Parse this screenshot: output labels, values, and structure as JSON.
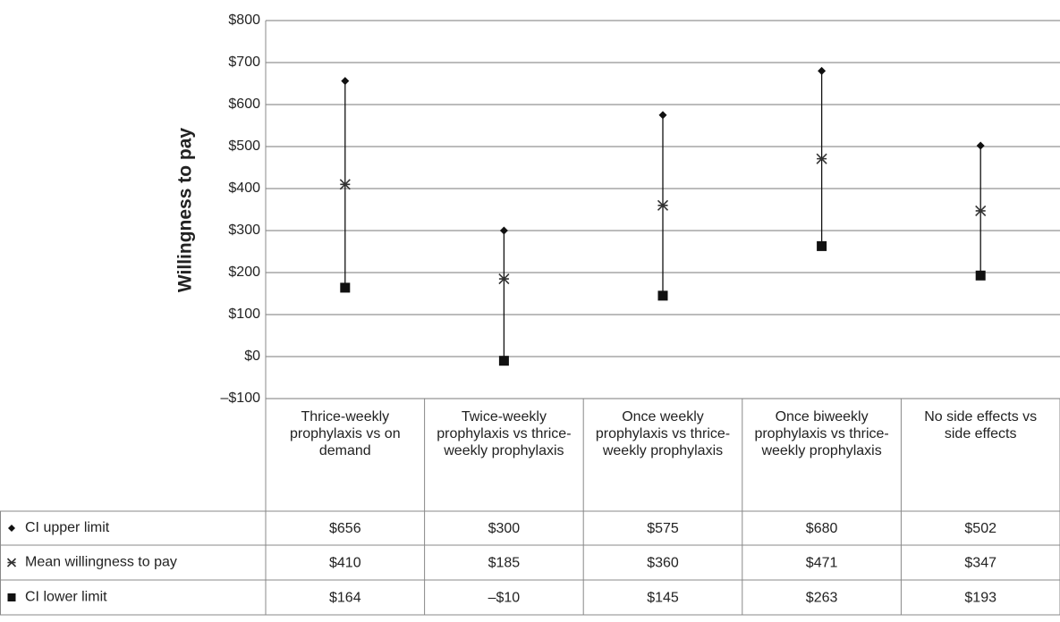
{
  "chart_data": {
    "type": "errorbar",
    "y_label": "Willingness to pay",
    "categories": [
      "Thrice-weekly prophylaxis vs on demand",
      "Twice-weekly prophylaxis vs thrice-weekly prophylaxis",
      "Once weekly prophylaxis vs thrice-weekly prophylaxis",
      "Once biweekly prophylaxis vs thrice-weekly prophylaxis",
      "No side effects vs side effects"
    ],
    "series": [
      {
        "name": "CI upper limit",
        "marker": "diamond",
        "color": "#111111",
        "values": [
          656,
          300,
          575,
          680,
          502
        ],
        "value_labels": [
          "$656",
          "$300",
          "$575",
          "$680",
          "$502"
        ]
      },
      {
        "name": "Mean willingness to pay",
        "marker": "star",
        "color": "#333333",
        "values": [
          410,
          185,
          360,
          471,
          347
        ],
        "value_labels": [
          "$410",
          "$185",
          "$360",
          "$471",
          "$347"
        ]
      },
      {
        "name": "CI lower limit",
        "marker": "square",
        "color": "#111111",
        "values": [
          164,
          -10,
          145,
          263,
          193
        ],
        "value_labels": [
          "$164",
          "–$10",
          "$145",
          "$263",
          "$193"
        ]
      }
    ],
    "ylim": [
      -100,
      800
    ],
    "yticks": [
      {
        "value": -100,
        "label": "–$100"
      },
      {
        "value": 0,
        "label": "$0"
      },
      {
        "value": 100,
        "label": "$100"
      },
      {
        "value": 200,
        "label": "$200"
      },
      {
        "value": 300,
        "label": "$300"
      },
      {
        "value": 400,
        "label": "$400"
      },
      {
        "value": 500,
        "label": "$500"
      },
      {
        "value": 600,
        "label": "$600"
      },
      {
        "value": 700,
        "label": "$700"
      },
      {
        "value": 800,
        "label": "$800"
      }
    ],
    "grid": true
  }
}
